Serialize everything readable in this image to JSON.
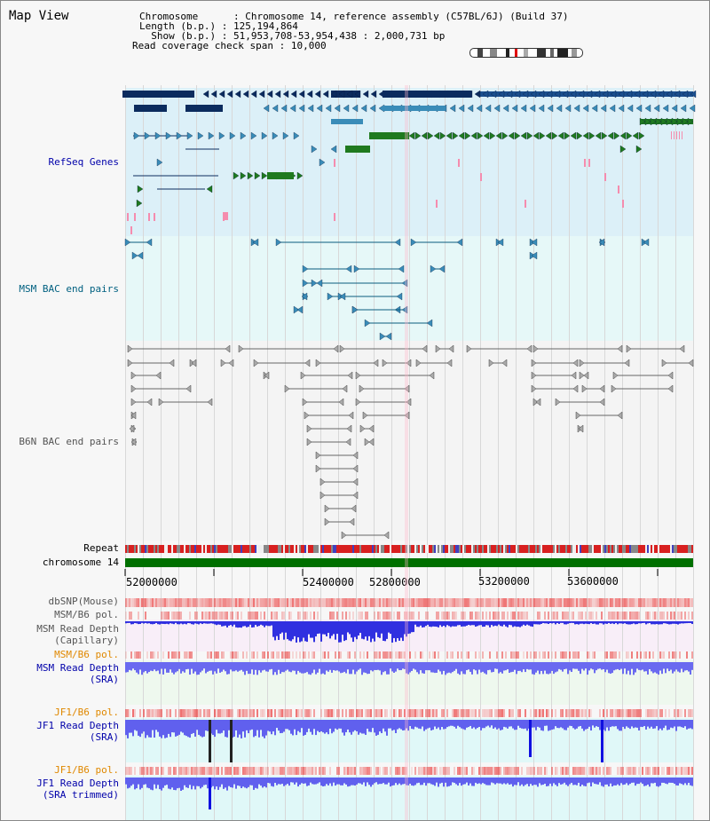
{
  "header": {
    "title": "Map View",
    "chromosome_key": "Chromosome",
    "chromosome_val": "Chromosome 14, reference assembly (C57BL/6J) (Build 37)",
    "length_key": "Length (b.p.)",
    "length_val": "125,194,864",
    "show_key": "Show (b.p.)",
    "show_val": "51,953,708-53,954,438 : 2,000,731 bp",
    "coverage_key": "Read coverage check span",
    "coverage_val": "10,000"
  },
  "tracks": {
    "refseq": "RefSeq Genes",
    "msm_bac": "MSM BAC end pairs",
    "b6n_bac": "B6N BAC end pairs",
    "repeat": "Repeat",
    "chromosome": "chromosome 14",
    "dbsnp": "dbSNP(Mouse)",
    "msm_pol1": "MSM/B6 pol.",
    "msm_depth_cap_1": "MSM Read Depth",
    "msm_depth_cap_2": "(Capillary)",
    "msm_pol2": "MSM/B6 pol.",
    "msm_depth_sra_1": "MSM Read Depth",
    "msm_depth_sra_2": "(SRA)",
    "jf1_pol1": "JF1/B6 pol.",
    "jf1_depth_sra_1": "JF1 Read Depth",
    "jf1_depth_sra_2": "(SRA)",
    "jf1_pol2": "JF1/B6 pol.",
    "jf1_depth_trim_1": "JF1 Read Depth",
    "jf1_depth_trim_2": "(SRA trimmed)"
  },
  "axis": {
    "ticks": [
      "52000000",
      "52400000",
      "52800000",
      "53200000",
      "53600000"
    ]
  },
  "colors": {
    "refseq_label": "#0000aa",
    "msm_label": "#006080",
    "b6n_label": "#555555",
    "orange_label": "#e08800",
    "blue_label": "#0000aa",
    "refseq_bg": "#dcf0f8",
    "msm_bg": "#e6f8f8",
    "chromosome": "#007000"
  }
}
